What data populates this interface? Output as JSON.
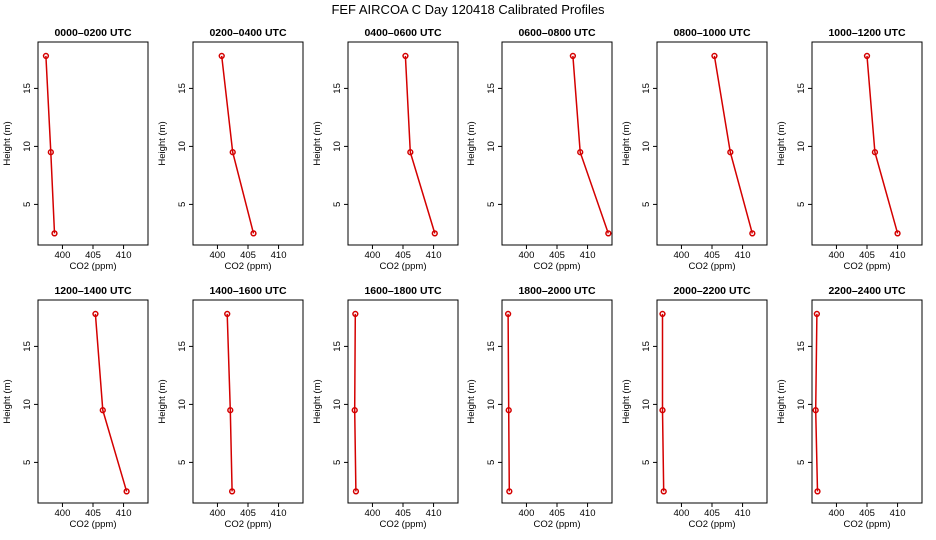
{
  "chart_data": {
    "type": "line",
    "title": "FEF AIRCOA C  Day 120418  Calibrated Profiles",
    "xlabel": "CO2 (ppm)",
    "ylabel": "Height (m)",
    "xlim": [
      396,
      414
    ],
    "ylim": [
      1.5,
      19
    ],
    "xticks": [
      400,
      405,
      410
    ],
    "yticks": [
      5,
      10,
      15
    ],
    "color": "#d40000",
    "panels": [
      {
        "title": "0000–0200 UTC",
        "x": [
          397.3,
          398.1,
          398.7
        ],
        "y": [
          17.8,
          9.5,
          2.5
        ],
        "xticks": [
          400,
          405,
          410
        ]
      },
      {
        "title": "0200–0400 UTC",
        "x": [
          400.7,
          402.5,
          405.9
        ],
        "y": [
          17.8,
          9.5,
          2.5
        ],
        "xticks": [
          400,
          405,
          410
        ]
      },
      {
        "title": "0400–0600 UTC",
        "x": [
          405.4,
          406.2,
          410.2
        ],
        "y": [
          17.8,
          9.5,
          2.5
        ],
        "xticks": [
          400,
          405,
          410
        ]
      },
      {
        "title": "0600–0800 UTC",
        "x": [
          407.6,
          408.8,
          413.4
        ],
        "y": [
          17.8,
          9.5,
          2.5
        ],
        "xticks": [
          400,
          405,
          410
        ]
      },
      {
        "title": "0800–1000 UTC",
        "x": [
          405.4,
          408.0,
          411.6
        ],
        "y": [
          17.8,
          9.5,
          2.5
        ],
        "xticks": [
          400,
          405,
          410
        ]
      },
      {
        "title": "1000–1200 UTC",
        "x": [
          405.0,
          406.3,
          410.0
        ],
        "y": [
          17.8,
          9.5,
          2.5
        ],
        "xticks": [
          400,
          405,
          410
        ]
      },
      {
        "title": "1200–1400 UTC",
        "x": [
          405.4,
          406.6,
          410.5
        ],
        "y": [
          17.8,
          9.5,
          2.5
        ],
        "xticks": [
          400,
          405,
          410
        ]
      },
      {
        "title": "1400–1600 UTC",
        "x": [
          401.6,
          402.1,
          402.4
        ],
        "y": [
          17.8,
          9.5,
          2.5
        ],
        "xticks": [
          400,
          405,
          410
        ]
      },
      {
        "title": "1600–1800 UTC",
        "x": [
          397.2,
          397.1,
          397.3
        ],
        "y": [
          17.8,
          9.5,
          2.5
        ],
        "xticks": [
          400,
          405,
          410
        ]
      },
      {
        "title": "1800–2000 UTC",
        "x": [
          397.0,
          397.1,
          397.2
        ],
        "y": [
          17.8,
          9.5,
          2.5
        ],
        "xticks": [
          400,
          405,
          410
        ]
      },
      {
        "title": "2000–2200 UTC",
        "x": [
          396.9,
          396.9,
          397.1
        ],
        "y": [
          17.8,
          9.5,
          2.5
        ],
        "xticks": [
          400,
          405,
          410
        ]
      },
      {
        "title": "2200–2400 UTC",
        "x": [
          396.8,
          396.6,
          396.9
        ],
        "y": [
          17.8,
          9.5,
          2.5
        ],
        "xticks": [
          400,
          405,
          410
        ]
      }
    ]
  }
}
